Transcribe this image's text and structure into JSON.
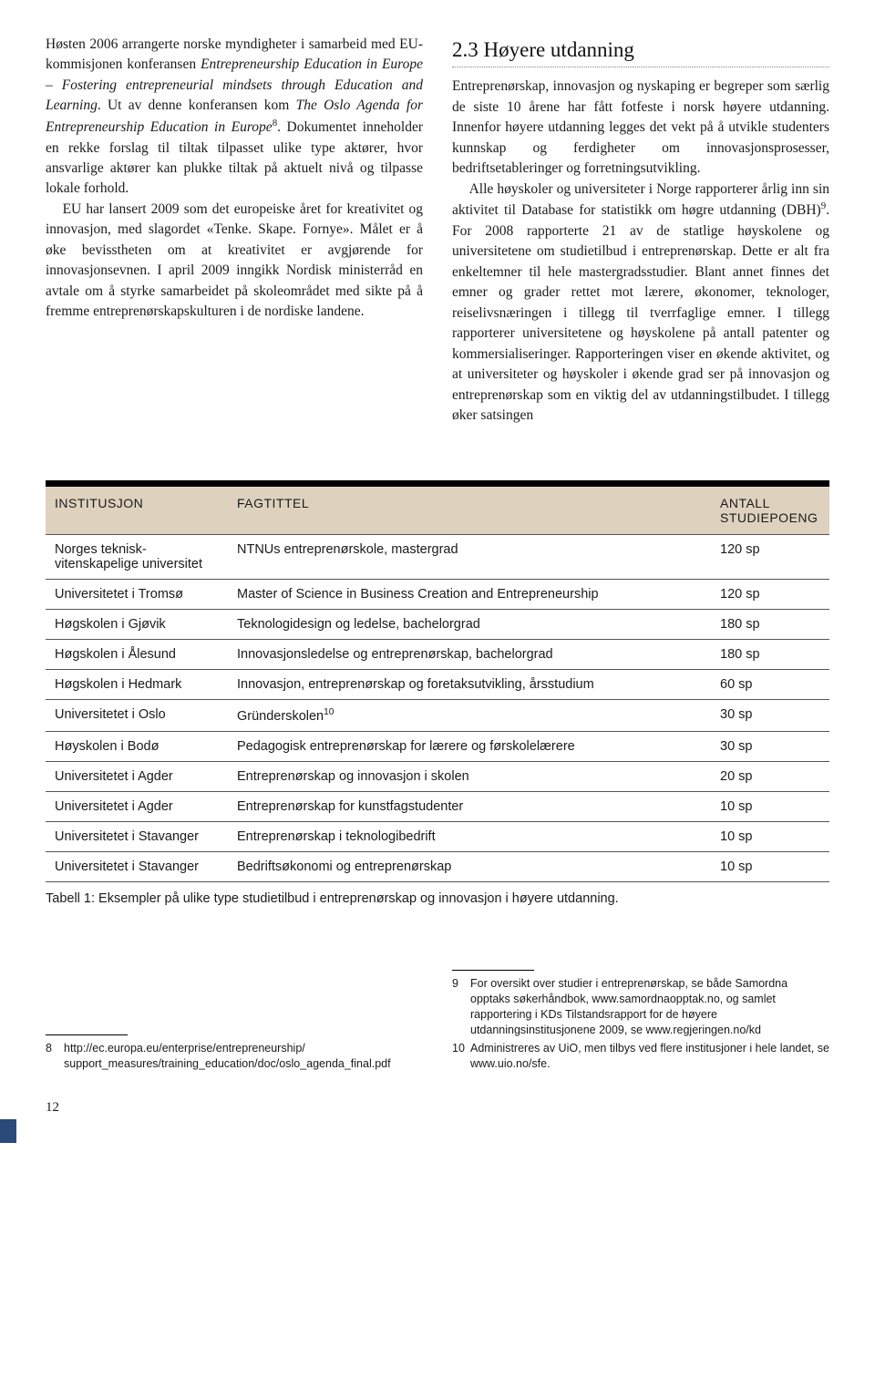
{
  "left_paragraphs": [
    "Høsten 2006 arrangerte norske myndigheter i samarbeid med EU-kommisjonen konferansen <span class=\"italic\">Entrepreneurship Education in Europe – Fostering entrepreneurial mindsets through Education and Learning</span>. Ut av denne konferansen kom <span class=\"italic\">The Oslo Agenda for Entrepreneurship Education in Europe</span><span class=\"sup\">8</span>. Dokumentet inneholder en rekke forslag til tiltak tilpasset ulike type aktører, hvor ansvarlige aktører kan plukke tiltak på aktuelt nivå og tilpasse lokale forhold.",
    "EU har lansert 2009 som det europeiske året for kreativitet og innovasjon, med slagordet «Tenke. Skape. Fornye». Målet er å øke bevisstheten om at kreativitet er avgjørende for innovasjonsevnen. I april 2009 inngikk Nordisk ministerråd en avtale om å styrke samarbeidet på skoleområdet med sikte på å fremme entreprenørskapskulturen i de nordiske landene."
  ],
  "section_heading": "2.3  Høyere utdanning",
  "right_paragraphs": [
    "Entreprenørskap, innovasjon og nyskaping er begreper som særlig de siste 10 årene har fått fotfeste i norsk høyere utdanning. Innenfor høyere utdanning legges det vekt på å utvikle studenters kunnskap og ferdigheter om innovasjonsprosesser, bedriftsetableringer og forretningsutvikling.",
    "Alle høyskoler og universiteter i Norge rapporterer årlig inn sin aktivitet til Database for statistikk om høgre utdanning (DBH)<span class=\"sup\">9</span>. For 2008 rapporterte 21 av de statlige høyskolene og universitetene om studietilbud i entreprenørskap. Dette er alt fra enkeltemner til hele mastergradsstudier. Blant annet finnes det emner og grader rettet mot lærere, økonomer, teknologer, reiselivsnæringen i tillegg til tverrfaglige emner. I tillegg rapporterer universitetene og høyskolene på antall patenter og kommersialiseringer. Rapporteringen viser en økende aktivitet, og at universiteter og høyskoler i økende grad ser på innovasjon og entreprenørskap som en viktig del av utdanningstilbudet. I tillegg øker satsingen"
  ],
  "table": {
    "headers": {
      "inst": "INSTITUSJON",
      "fag": "FAGTITTEL",
      "sp": "ANTALL STUDIEPOENG"
    },
    "rows": [
      {
        "inst": "Norges teknisk-vitenskapelige universitet",
        "fag": "NTNUs entreprenørskole, mastergrad",
        "sp": "120 sp"
      },
      {
        "inst": "Universitetet i Tromsø",
        "fag": "Master of Science in Business Creation and Entrepreneurship",
        "sp": "120 sp"
      },
      {
        "inst": "Høgskolen i Gjøvik",
        "fag": "Teknologidesign og ledelse, bachelorgrad",
        "sp": "180 sp"
      },
      {
        "inst": "Høgskolen i Ålesund",
        "fag": "Innovasjonsledelse og entreprenørskap, bachelorgrad",
        "sp": "180 sp"
      },
      {
        "inst": "Høgskolen i Hedmark",
        "fag": "Innovasjon, entreprenørskap og foretaksutvikling, årsstudium",
        "sp": "60 sp"
      },
      {
        "inst": "Universitetet i Oslo",
        "fag": "Gründerskolen<span class=\"sup\">10</span>",
        "sp": "30 sp"
      },
      {
        "inst": "Høyskolen i Bodø",
        "fag": "Pedagogisk entreprenørskap for lærere og førskolelærere",
        "sp": "30 sp"
      },
      {
        "inst": "Universitetet i Agder",
        "fag": "Entreprenørskap og innovasjon i skolen",
        "sp": "20 sp"
      },
      {
        "inst": "Universitetet i Agder",
        "fag": "Entreprenørskap for kunstfagstudenter",
        "sp": "10 sp"
      },
      {
        "inst": "Universitetet i Stavanger",
        "fag": "Entreprenørskap i teknologibedrift",
        "sp": "10 sp"
      },
      {
        "inst": "Universitetet i Stavanger",
        "fag": "Bedriftsøkonomi og entreprenørskap",
        "sp": "10 sp"
      }
    ],
    "caption": "Tabell 1: Eksempler på ulike type studietilbud i entreprenørskap og innovasjon i høyere utdanning."
  },
  "footnotes": {
    "left": [
      {
        "n": "8",
        "t": "http://ec.europa.eu/enterprise/entrepreneurship/ support_measures/training_education/doc/oslo_agenda_final.pdf"
      }
    ],
    "right": [
      {
        "n": "9",
        "t": "For oversikt over studier i entreprenørskap, se både Samordna opptaks søkerhåndbok, www.samordnaopptak.no, og samlet rapportering i KDs Tilstandsrapport for de høyere utdanningsinstitusjonene 2009, se www.regjeringen.no/kd"
      },
      {
        "n": "10",
        "t": "Administreres av UiO, men tilbys ved flere institusjoner i hele landet, se www.uio.no/sfe."
      }
    ]
  },
  "page_number": "12"
}
